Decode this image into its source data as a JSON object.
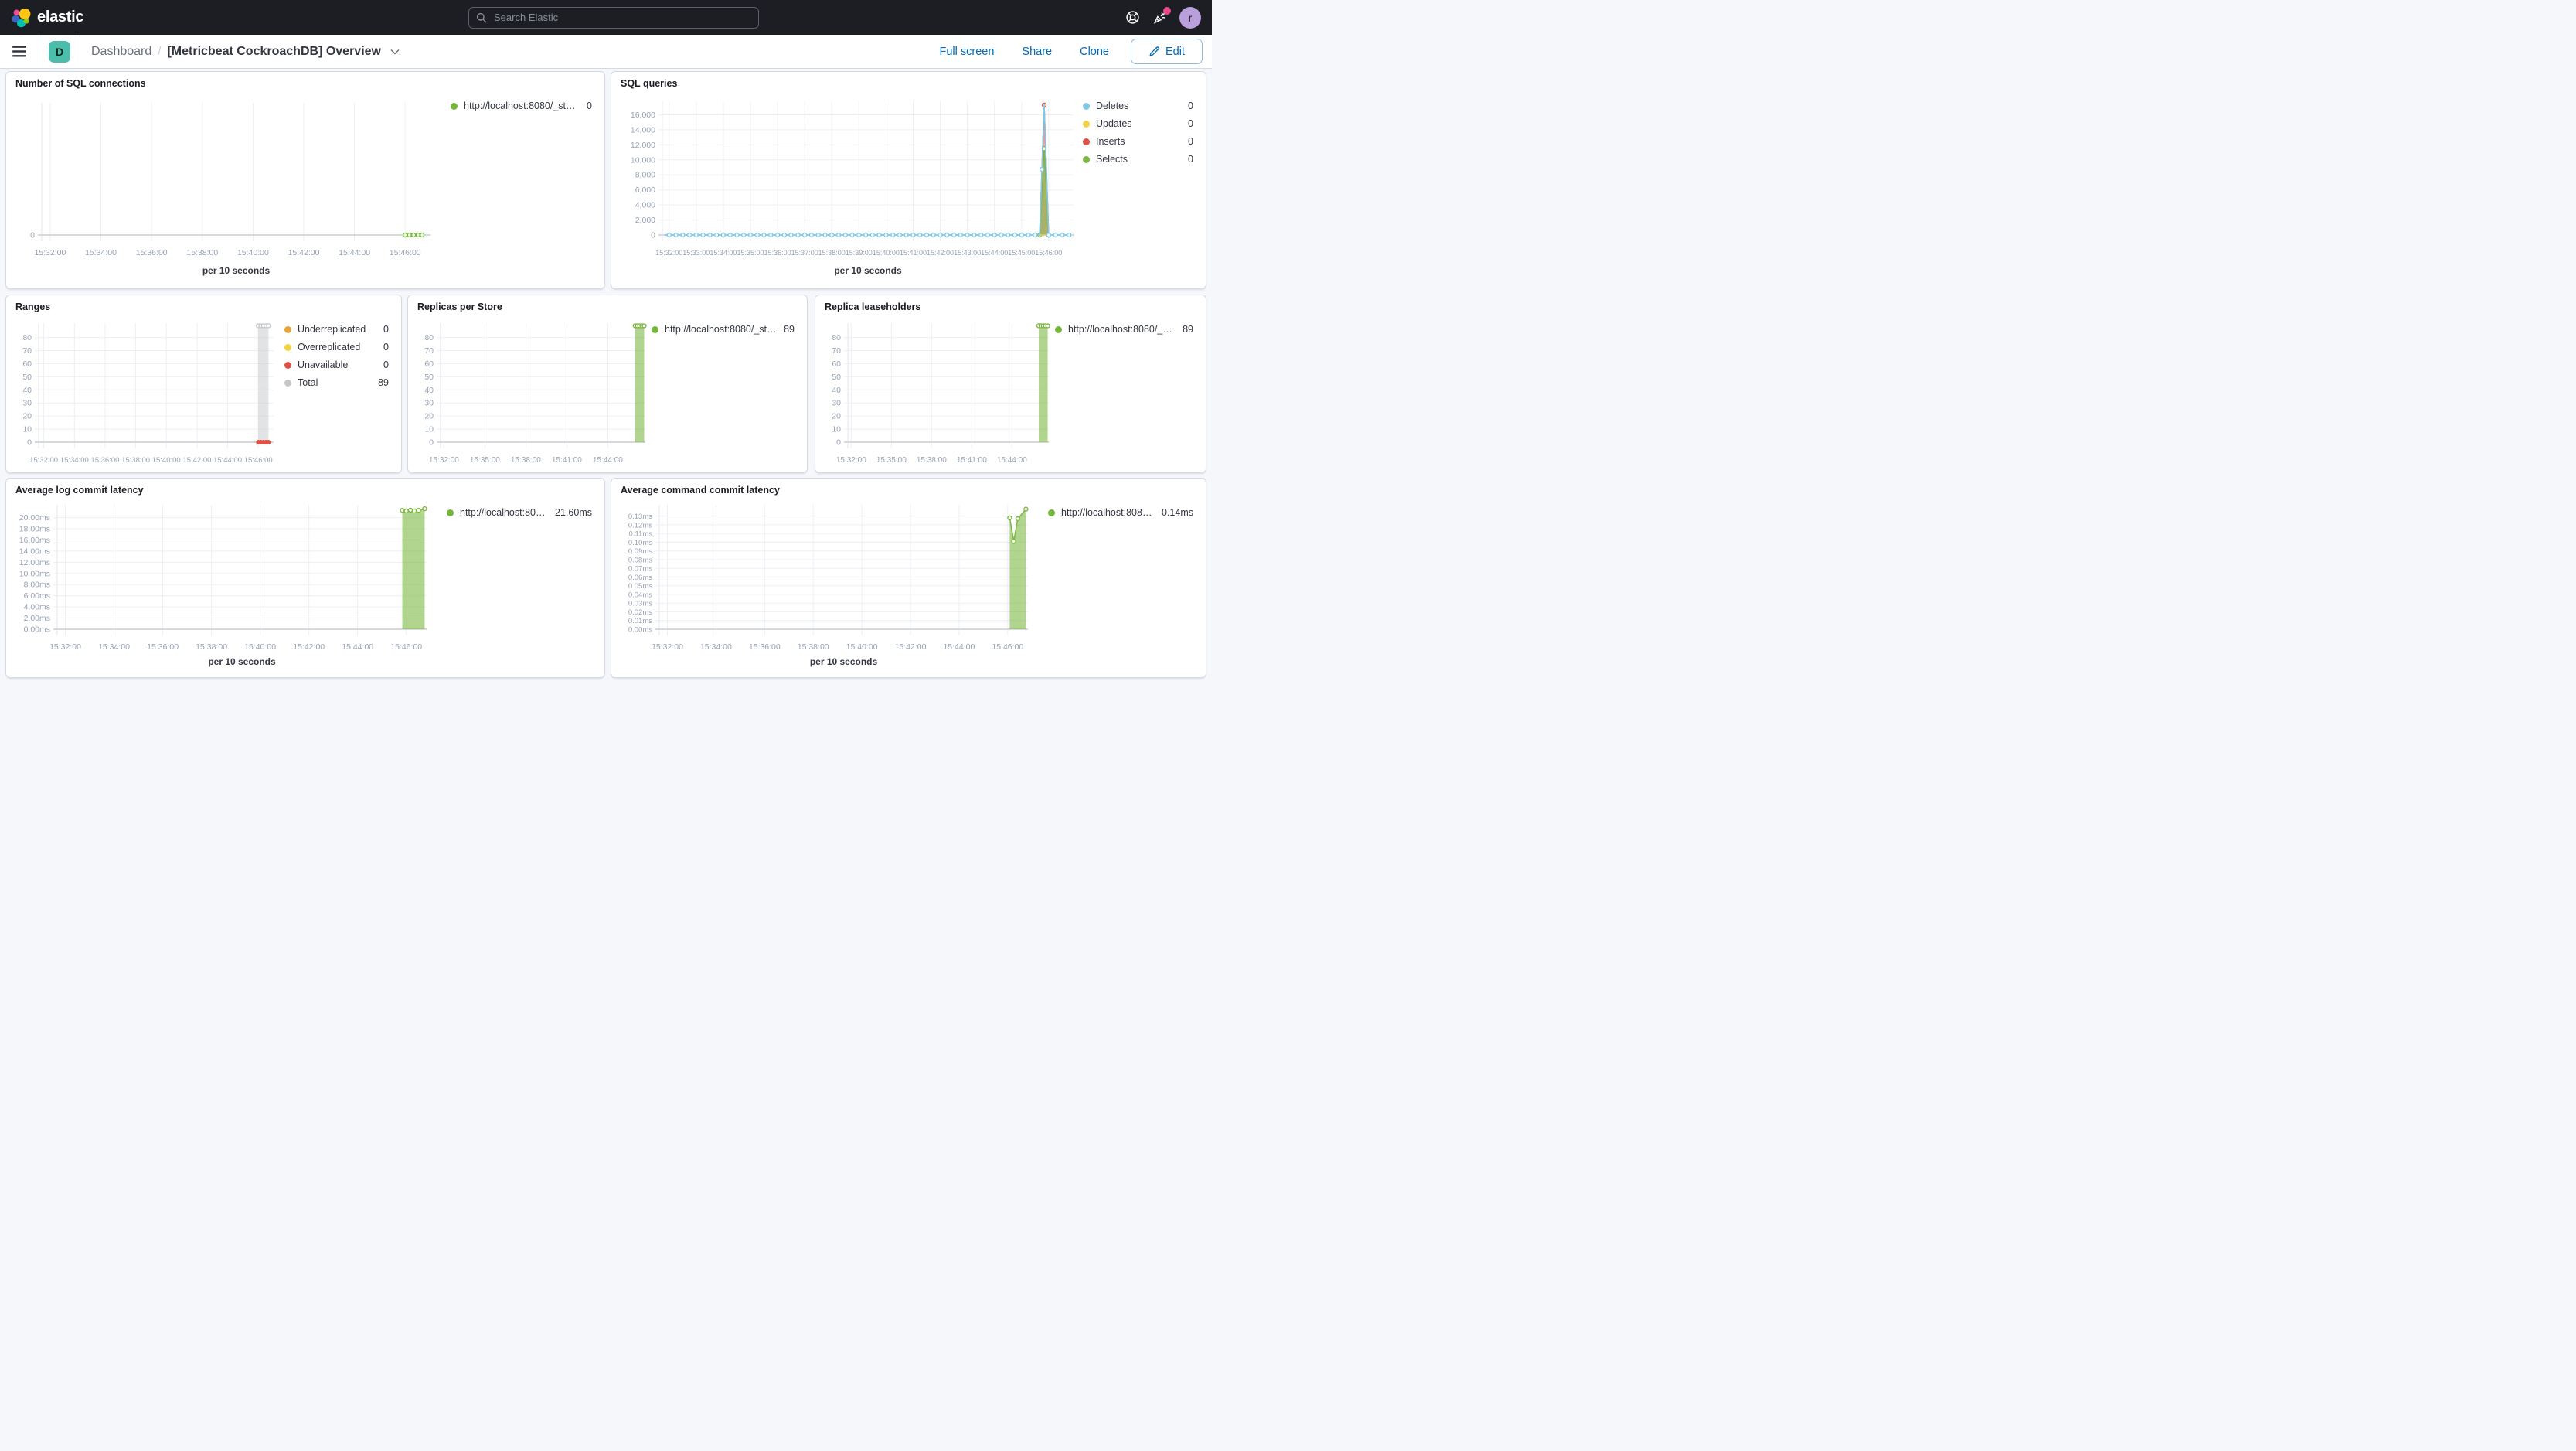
{
  "header": {
    "brand": "elastic",
    "search_placeholder": "Search Elastic",
    "avatar_initial": "r"
  },
  "toolbar": {
    "badge_letter": "D",
    "breadcrumb_root": "Dashboard",
    "breadcrumb_separator": "/",
    "title": "[Metricbeat CockroachDB] Overview",
    "actions": {
      "full_screen": "Full screen",
      "share": "Share",
      "clone": "Clone",
      "edit": "Edit"
    }
  },
  "colors": {
    "accent_blue": "#006BB4",
    "header_bg": "#1D1E23",
    "badge_teal": "#4DBDAB",
    "avatar_purple": "#B9A0DC",
    "notification_pink": "#E7488C",
    "series_green": "#74B63C",
    "series_blue": "#7FC9E7",
    "series_yellow": "#F1D342",
    "series_red": "#DE5146",
    "series_orange": "#E8A23A",
    "series_gray": "#C4C7CC"
  },
  "chart_data": [
    {
      "id": "sql-connections",
      "type": "line",
      "title": "Number of SQL connections",
      "xlabel": "per 10 seconds",
      "x_domain": [
        "15:31:40",
        "15:47:00"
      ],
      "x_ticks": [
        "15:32:00",
        "15:34:00",
        "15:36:00",
        "15:38:00",
        "15:40:00",
        "15:42:00",
        "15:44:00",
        "15:46:00"
      ],
      "y_max": 1,
      "y_ticks": [
        {
          "v": 0,
          "label": "0"
        }
      ],
      "legend": [
        {
          "label": "http://localhost:8080/_stat...",
          "value": "0",
          "color": "#74B63C"
        }
      ],
      "series": [
        {
          "name": "http://localhost:8080/_stat...",
          "color": "#74B63C",
          "mode": "line",
          "marker": "open",
          "points": [
            [
              "15:46:00",
              0
            ],
            [
              "15:46:10",
              0
            ],
            [
              "15:46:20",
              0
            ],
            [
              "15:46:30",
              0
            ],
            [
              "15:46:40",
              0
            ]
          ]
        }
      ]
    },
    {
      "id": "sql-queries",
      "type": "area",
      "title": "SQL queries",
      "xlabel": "per 10 seconds",
      "x_domain": [
        "15:31:45",
        "15:46:55"
      ],
      "x_ticks": [
        "15:32:00",
        "15:33:00",
        "15:34:00",
        "15:35:00",
        "15:36:00",
        "15:37:00",
        "15:38:00",
        "15:39:00",
        "15:40:00",
        "15:41:00",
        "15:42:00",
        "15:43:00",
        "15:44:00",
        "15:45:00",
        "15:46:00"
      ],
      "y_max": 17800,
      "y_ticks": [
        {
          "v": 0,
          "label": "0"
        },
        {
          "v": 2000,
          "label": "2,000"
        },
        {
          "v": 4000,
          "label": "4,000"
        },
        {
          "v": 6000,
          "label": "6,000"
        },
        {
          "v": 8000,
          "label": "8,000"
        },
        {
          "v": 10000,
          "label": "10,000"
        },
        {
          "v": 12000,
          "label": "12,000"
        },
        {
          "v": 14000,
          "label": "14,000"
        },
        {
          "v": 16000,
          "label": "16,000"
        }
      ],
      "legend": [
        {
          "label": "Deletes",
          "value": "0",
          "color": "#7FC9E7"
        },
        {
          "label": "Updates",
          "value": "0",
          "color": "#F1D342"
        },
        {
          "label": "Inserts",
          "value": "0",
          "color": "#DE5146"
        },
        {
          "label": "Selects",
          "value": "0",
          "color": "#7DB742"
        }
      ],
      "series": [
        {
          "name": "Inserts",
          "color": "#DE5146",
          "mode": "area",
          "fill_opacity": 0.5,
          "marker": "open",
          "points": [
            [
              "15:45:40",
              0
            ],
            [
              "15:45:50",
              17300
            ],
            [
              "15:46:00",
              0
            ]
          ]
        },
        {
          "name": "Selects",
          "color": "#7DB742",
          "mode": "area",
          "fill_opacity": 0.6,
          "marker": "open",
          "points": [
            [
              "15:45:40",
              0
            ],
            [
              "15:45:50",
              11500
            ],
            [
              "15:46:00",
              0
            ]
          ]
        },
        {
          "name": "Updates",
          "color": "#F1D342",
          "mode": "line",
          "points": [
            [
              "15:45:40",
              0
            ],
            [
              "15:46:00",
              0
            ]
          ]
        },
        {
          "name": "Deletes",
          "color": "#7FC9E7",
          "mode": "line",
          "marker": "open",
          "marker_every": 15,
          "points": [
            [
              "15:31:50",
              0
            ],
            [
              "15:45:40",
              0
            ],
            [
              "15:45:50",
              17500
            ],
            [
              "15:46:00",
              0
            ],
            [
              "15:46:50",
              0
            ]
          ]
        }
      ]
    },
    {
      "id": "ranges",
      "type": "area",
      "title": "Ranges",
      "xlabel": "per 10 seconds",
      "x_domain": [
        "15:31:40",
        "15:47:00"
      ],
      "x_ticks": [
        "15:32:00",
        "15:34:00",
        "15:36:00",
        "15:38:00",
        "15:40:00",
        "15:42:00",
        "15:44:00",
        "15:46:00"
      ],
      "y_max": 91,
      "y_ticks": [
        {
          "v": 0,
          "label": "0"
        },
        {
          "v": 10,
          "label": "10"
        },
        {
          "v": 20,
          "label": "20"
        },
        {
          "v": 30,
          "label": "30"
        },
        {
          "v": 40,
          "label": "40"
        },
        {
          "v": 50,
          "label": "50"
        },
        {
          "v": 60,
          "label": "60"
        },
        {
          "v": 70,
          "label": "70"
        },
        {
          "v": 80,
          "label": "80"
        }
      ],
      "legend": [
        {
          "label": "Underreplicated",
          "value": "0",
          "color": "#E8A23A"
        },
        {
          "label": "Overreplicated",
          "value": "0",
          "color": "#F1D342"
        },
        {
          "label": "Unavailable",
          "value": "0",
          "color": "#DE5146"
        },
        {
          "label": "Total",
          "value": "89",
          "color": "#C4C7CC"
        }
      ],
      "series": [
        {
          "name": "Total",
          "color": "#C4C7CC",
          "mode": "area",
          "fill_opacity": 0.5,
          "marker": "open",
          "points": [
            [
              "15:46:00",
              89
            ],
            [
              "15:46:10",
              89
            ],
            [
              "15:46:20",
              89
            ],
            [
              "15:46:30",
              89
            ],
            [
              "15:46:40",
              89
            ]
          ]
        },
        {
          "name": "Underreplicated",
          "color": "#E8A23A",
          "mode": "line",
          "points": [
            [
              "15:46:00",
              0
            ],
            [
              "15:46:40",
              0
            ]
          ]
        },
        {
          "name": "Overreplicated",
          "color": "#F1D342",
          "mode": "line",
          "points": [
            [
              "15:46:00",
              0
            ],
            [
              "15:46:40",
              0
            ]
          ]
        },
        {
          "name": "Unavailable",
          "color": "#DE5146",
          "mode": "line",
          "marker": "solid",
          "points": [
            [
              "15:46:00",
              0
            ],
            [
              "15:46:10",
              0
            ],
            [
              "15:46:20",
              0
            ],
            [
              "15:46:30",
              0
            ],
            [
              "15:46:40",
              0
            ]
          ]
        }
      ]
    },
    {
      "id": "replicas-per-store",
      "type": "area",
      "title": "Replicas per Store",
      "xlabel": "per 10 seconds",
      "x_domain": [
        "15:31:45",
        "15:46:45"
      ],
      "x_ticks": [
        "15:32:00",
        "15:35:00",
        "15:38:00",
        "15:41:00",
        "15:44:00"
      ],
      "y_max": 91,
      "y_ticks": [
        {
          "v": 0,
          "label": "0"
        },
        {
          "v": 10,
          "label": "10"
        },
        {
          "v": 20,
          "label": "20"
        },
        {
          "v": 30,
          "label": "30"
        },
        {
          "v": 40,
          "label": "40"
        },
        {
          "v": 50,
          "label": "50"
        },
        {
          "v": 60,
          "label": "60"
        },
        {
          "v": 70,
          "label": "70"
        },
        {
          "v": 80,
          "label": "80"
        }
      ],
      "legend": [
        {
          "label": "http://localhost:8080/_sta...",
          "value": "89",
          "color": "#74B63C"
        }
      ],
      "series": [
        {
          "name": "http://localhost:8080/_sta...",
          "color": "#7DB742",
          "mode": "area",
          "fill_opacity": 0.6,
          "marker": "open",
          "points": [
            [
              "15:46:00",
              89
            ],
            [
              "15:46:10",
              89
            ],
            [
              "15:46:20",
              89
            ],
            [
              "15:46:30",
              89
            ],
            [
              "15:46:40",
              89
            ]
          ]
        }
      ]
    },
    {
      "id": "replica-leaseholders",
      "type": "area",
      "title": "Replica leaseholders",
      "xlabel": "per 10 seconds",
      "x_domain": [
        "15:31:45",
        "15:46:45"
      ],
      "x_ticks": [
        "15:32:00",
        "15:35:00",
        "15:38:00",
        "15:41:00",
        "15:44:00"
      ],
      "y_max": 91,
      "y_ticks": [
        {
          "v": 0,
          "label": "0"
        },
        {
          "v": 10,
          "label": "10"
        },
        {
          "v": 20,
          "label": "20"
        },
        {
          "v": 30,
          "label": "30"
        },
        {
          "v": 40,
          "label": "40"
        },
        {
          "v": 50,
          "label": "50"
        },
        {
          "v": 60,
          "label": "60"
        },
        {
          "v": 70,
          "label": "70"
        },
        {
          "v": 80,
          "label": "80"
        }
      ],
      "legend": [
        {
          "label": "http://localhost:8080/_sta...",
          "value": "89",
          "color": "#74B63C"
        }
      ],
      "series": [
        {
          "name": "http://localhost:8080/_sta...",
          "color": "#7DB742",
          "mode": "area",
          "fill_opacity": 0.6,
          "marker": "open",
          "points": [
            [
              "15:46:00",
              89
            ],
            [
              "15:46:10",
              89
            ],
            [
              "15:46:20",
              89
            ],
            [
              "15:46:30",
              89
            ],
            [
              "15:46:40",
              89
            ]
          ]
        }
      ]
    },
    {
      "id": "avg-log-commit-latency",
      "type": "area",
      "title": "Average log commit latency",
      "xlabel": "per 10 seconds",
      "x_domain": [
        "15:31:40",
        "15:46:50"
      ],
      "x_ticks": [
        "15:32:00",
        "15:34:00",
        "15:36:00",
        "15:38:00",
        "15:40:00",
        "15:42:00",
        "15:44:00",
        "15:46:00"
      ],
      "y_max": 22.3,
      "y_ticks": [
        {
          "v": 0,
          "label": "0.00ms"
        },
        {
          "v": 2,
          "label": "2.00ms"
        },
        {
          "v": 4,
          "label": "4.00ms"
        },
        {
          "v": 6,
          "label": "6.00ms"
        },
        {
          "v": 8,
          "label": "8.00ms"
        },
        {
          "v": 10,
          "label": "10.00ms"
        },
        {
          "v": 12,
          "label": "12.00ms"
        },
        {
          "v": 14,
          "label": "14.00ms"
        },
        {
          "v": 16,
          "label": "16.00ms"
        },
        {
          "v": 18,
          "label": "18.00ms"
        },
        {
          "v": 20,
          "label": "20.00ms"
        }
      ],
      "legend": [
        {
          "label": "http://localhost:808...",
          "value": "21.60ms",
          "color": "#74B63C"
        }
      ],
      "series": [
        {
          "name": "http://localhost:808...",
          "color": "#7DB742",
          "mode": "area",
          "fill_opacity": 0.6,
          "marker": "open",
          "points": [
            [
              "15:45:50",
              21.3
            ],
            [
              "15:46:00",
              21.2
            ],
            [
              "15:46:10",
              21.35
            ],
            [
              "15:46:20",
              21.2
            ],
            [
              "15:46:30",
              21.3
            ],
            [
              "15:46:45",
              21.6
            ]
          ]
        }
      ]
    },
    {
      "id": "avg-command-commit-latency",
      "type": "area",
      "title": "Average command commit latency",
      "xlabel": "per 10 seconds",
      "x_domain": [
        "15:31:40",
        "15:46:50"
      ],
      "x_ticks": [
        "15:32:00",
        "15:34:00",
        "15:36:00",
        "15:38:00",
        "15:40:00",
        "15:42:00",
        "15:44:00",
        "15:46:00"
      ],
      "y_max": 0.143,
      "y_ticks": [
        {
          "v": 0,
          "label": "0.00ms"
        },
        {
          "v": 0.01,
          "label": "0.01ms"
        },
        {
          "v": 0.02,
          "label": "0.02ms"
        },
        {
          "v": 0.03,
          "label": "0.03ms"
        },
        {
          "v": 0.04,
          "label": "0.04ms"
        },
        {
          "v": 0.05,
          "label": "0.05ms"
        },
        {
          "v": 0.06,
          "label": "0.06ms"
        },
        {
          "v": 0.07,
          "label": "0.07ms"
        },
        {
          "v": 0.08,
          "label": "0.08ms"
        },
        {
          "v": 0.09,
          "label": "0.09ms"
        },
        {
          "v": 0.1,
          "label": "0.10ms"
        },
        {
          "v": 0.11,
          "label": "0.11ms"
        },
        {
          "v": 0.12,
          "label": "0.12ms"
        },
        {
          "v": 0.13,
          "label": "0.13ms"
        }
      ],
      "legend": [
        {
          "label": "http://localhost:8080...",
          "value": "0.14ms",
          "color": "#74B63C"
        }
      ],
      "series": [
        {
          "name": "http://localhost:8080...",
          "color": "#7DB742",
          "mode": "area",
          "fill_opacity": 0.6,
          "marker": "open",
          "points": [
            [
              "15:46:05",
              0.128
            ],
            [
              "15:46:15",
              0.101
            ],
            [
              "15:46:25",
              0.127
            ],
            [
              "15:46:45",
              0.138
            ]
          ]
        }
      ]
    }
  ]
}
